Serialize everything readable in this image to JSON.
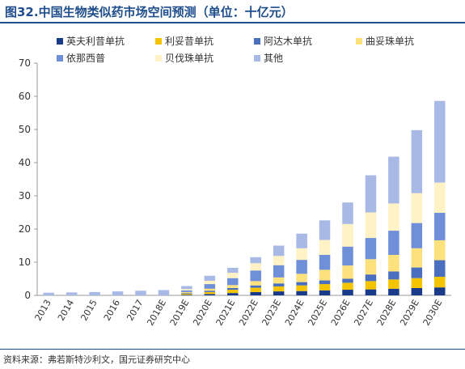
{
  "title": "图32.中国生物类似药市场空间预测（单位：十亿元）",
  "source": "资料来源：弗若斯特沙利文，国元证券研究中心",
  "chart_data": {
    "type": "bar",
    "stacked": true,
    "legend_position": "top",
    "grid": false,
    "ylim": [
      0,
      70
    ],
    "yticks": [
      0,
      10,
      20,
      30,
      40,
      50,
      60,
      70
    ],
    "categories": [
      "2013",
      "2014",
      "2015",
      "2016",
      "2017",
      "2018E",
      "2019E",
      "2020E",
      "2021E",
      "2022E",
      "2023E",
      "2024E",
      "2025E",
      "2026E",
      "2027E",
      "2028E",
      "2029E",
      "2030E"
    ],
    "series": [
      {
        "name": "英夫利昔单抗",
        "color": "#1a3a8a",
        "values": [
          0,
          0,
          0,
          0,
          0,
          0,
          0.2,
          0.4,
          0.7,
          1.0,
          1.2,
          1.3,
          1.5,
          1.7,
          1.8,
          2.0,
          2.2,
          2.4
        ]
      },
      {
        "name": "利妥昔单抗",
        "color": "#f5c400",
        "values": [
          0,
          0,
          0,
          0,
          0,
          0,
          0.3,
          0.6,
          1.0,
          1.3,
          1.5,
          1.7,
          1.9,
          2.1,
          2.5,
          2.8,
          3.0,
          3.2
        ]
      },
      {
        "name": "阿达木单抗",
        "color": "#4a6fbf",
        "values": [
          0,
          0,
          0,
          0,
          0,
          0,
          0.2,
          0.4,
          0.5,
          0.7,
          0.9,
          1.0,
          1.1,
          1.2,
          2.0,
          2.4,
          3.2,
          5.0
        ]
      },
      {
        "name": "曲妥珠单抗",
        "color": "#fde17c",
        "values": [
          0,
          0,
          0,
          0,
          0,
          0,
          0.3,
          0.6,
          0.9,
          1.3,
          1.8,
          2.5,
          3.2,
          4.0,
          4.6,
          5.0,
          5.8,
          6.0
        ]
      },
      {
        "name": "依那西普",
        "color": "#6f8fd8",
        "values": [
          0,
          0,
          0,
          0,
          0,
          0,
          0.5,
          1.4,
          2.1,
          3.2,
          3.7,
          4.2,
          4.5,
          5.7,
          6.4,
          7.3,
          7.6,
          8.3
        ]
      },
      {
        "name": "贝伐珠单抗",
        "color": "#fff2c4",
        "values": [
          0,
          0,
          0,
          0,
          0,
          0,
          0.4,
          1.0,
          1.6,
          2.2,
          2.8,
          3.5,
          4.5,
          6.8,
          7.7,
          8.2,
          9.0,
          9.1
        ]
      },
      {
        "name": "其他",
        "color": "#a9b9e6",
        "values": [
          0.8,
          0.9,
          1.0,
          1.2,
          1.4,
          1.6,
          0.9,
          1.5,
          1.5,
          1.8,
          3.1,
          4.4,
          5.9,
          6.5,
          11.2,
          14.1,
          19.0,
          24.6
        ]
      }
    ]
  }
}
